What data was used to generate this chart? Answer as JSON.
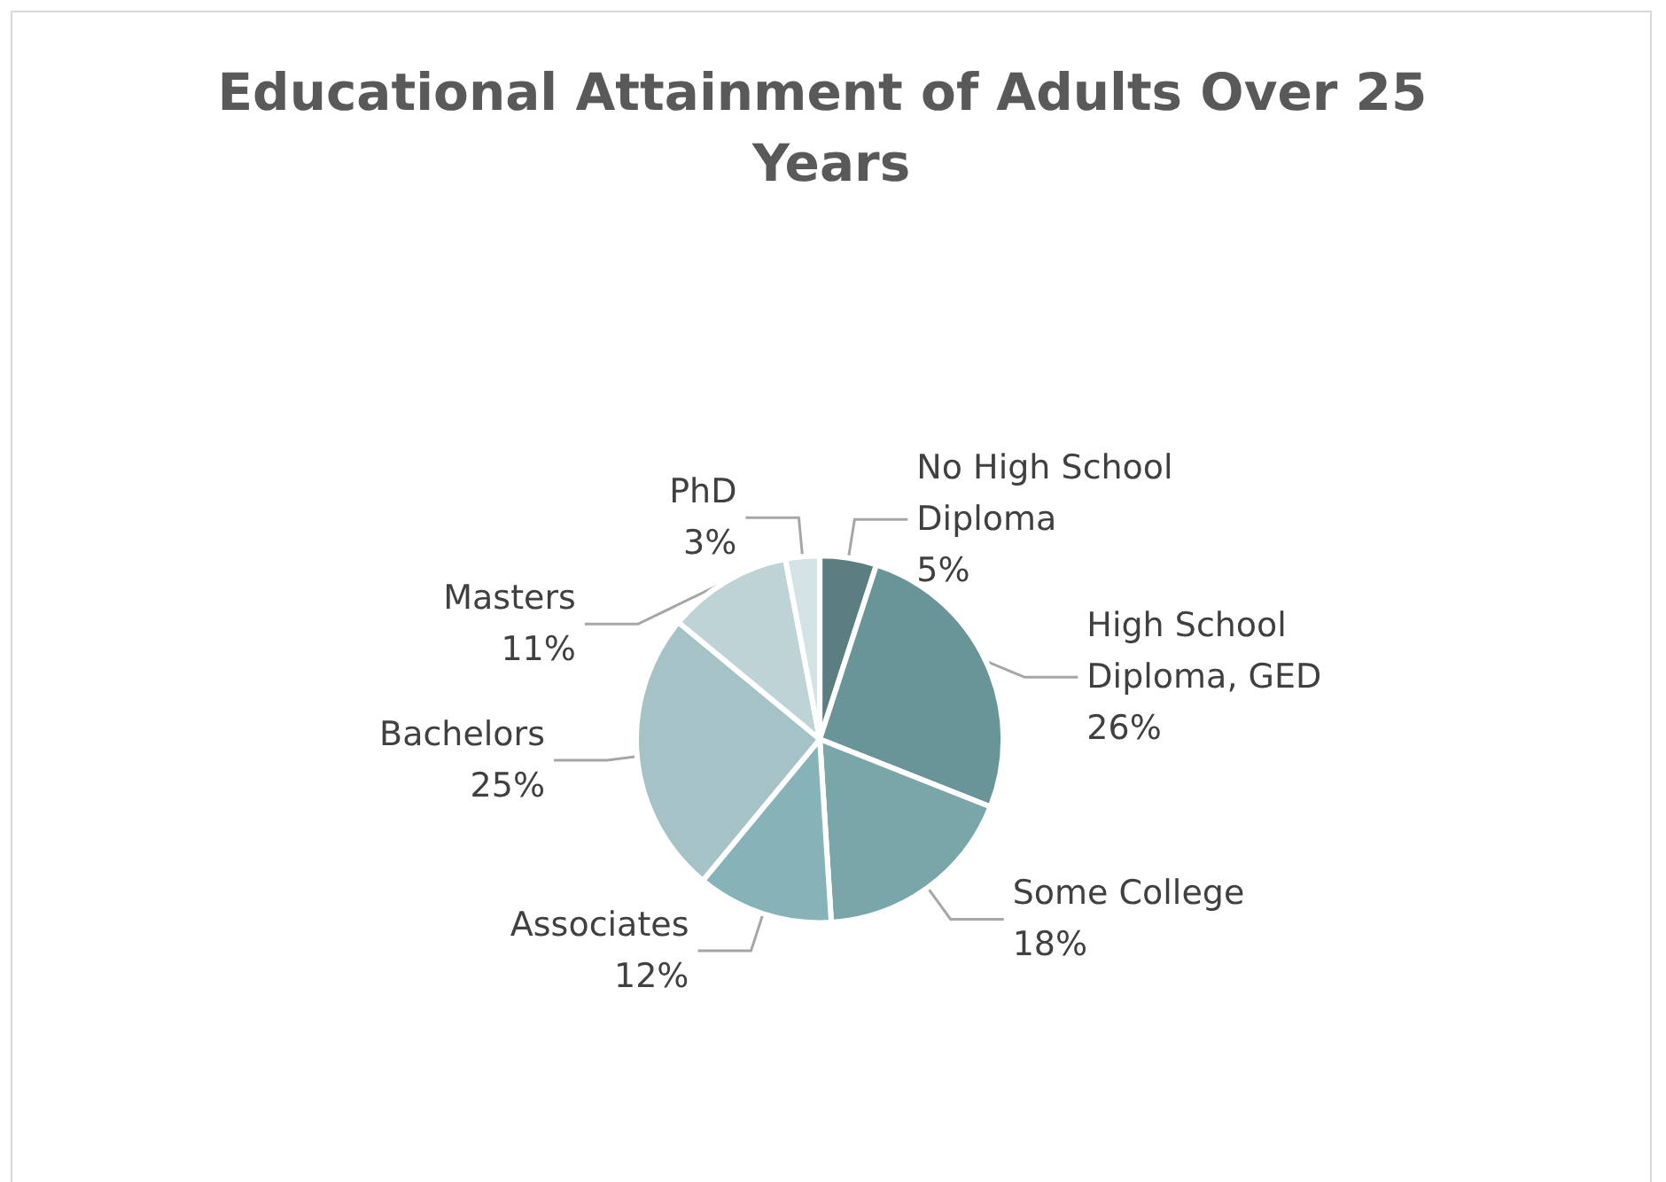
{
  "chart_data": {
    "type": "pie",
    "title": "Educational Attainment of Adults Over 25 Years",
    "categories": [
      "No High School Diploma",
      "High School Diploma, GED",
      "Some College",
      "Associates",
      "Bachelors",
      "Masters",
      "PhD"
    ],
    "values": [
      5,
      26,
      18,
      12,
      25,
      11,
      3
    ],
    "value_labels": [
      "5%",
      "26%",
      "18%",
      "12%",
      "25%",
      "11%",
      "3%"
    ],
    "colors": [
      "#5b7f80",
      "#6a9598",
      "#79a6a8",
      "#85b3b7",
      "#a5c3c6",
      "#bdd3d6",
      "#d3e2e5"
    ],
    "legend": false
  }
}
